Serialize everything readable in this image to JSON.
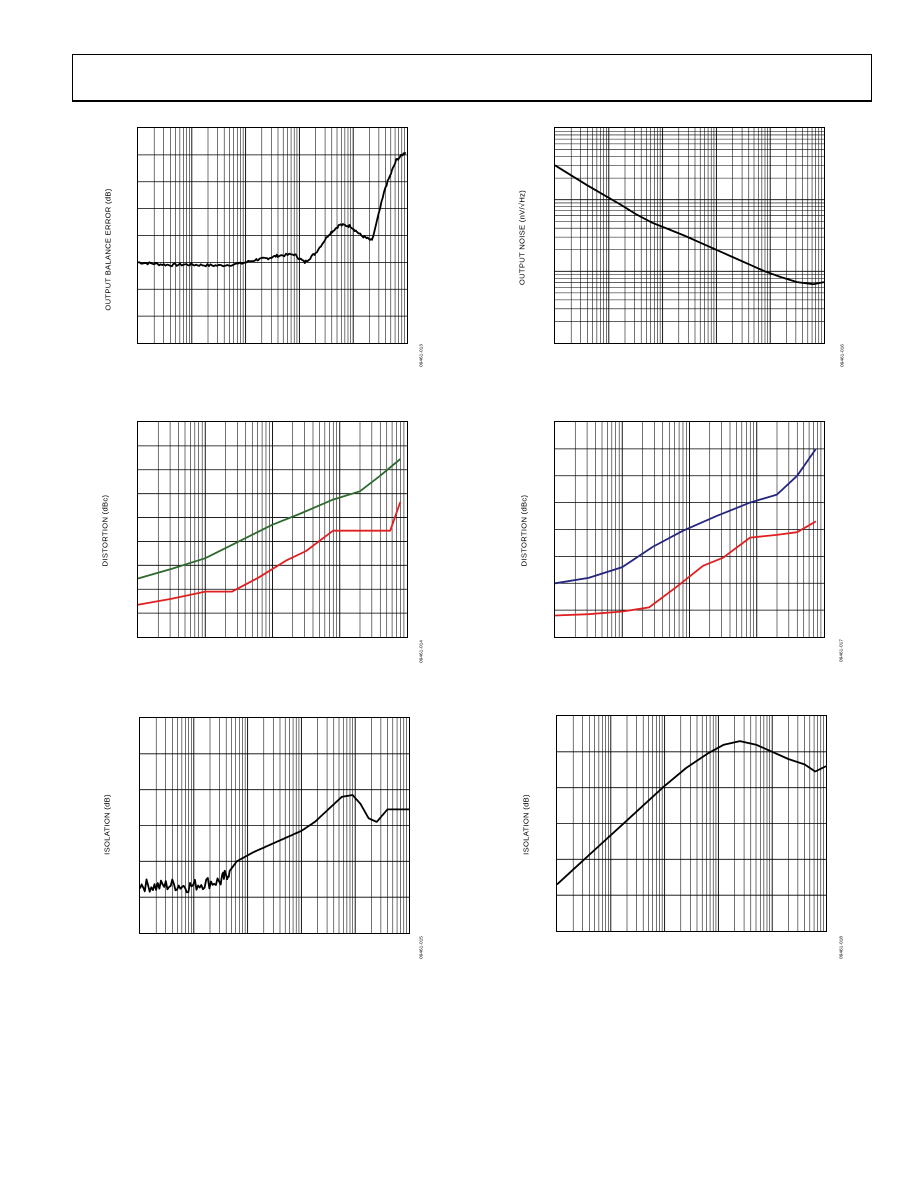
{
  "page": {
    "header_text": ""
  },
  "chart_data": [
    {
      "id": "c1",
      "type": "line",
      "ylabel": "OUTPUT BALANCE ERROR (dB)",
      "figure_id": "09461-013",
      "x_decades": 5,
      "y_divisions": 8,
      "hgrid_minor": 1,
      "ylim": [
        0,
        8
      ],
      "xlog": true,
      "xlim": [
        0,
        5
      ],
      "series": [
        {
          "color": "#000000",
          "jitter": 0.05,
          "x": [
            0,
            0.3,
            0.6,
            0.9,
            1.2,
            1.5,
            1.9,
            2.2,
            2.4,
            2.6,
            2.9,
            3.1,
            3.3,
            3.55,
            3.75,
            3.95,
            4.15,
            4.35,
            4.6,
            4.8,
            4.97
          ],
          "y": [
            3.0,
            2.95,
            2.9,
            2.92,
            2.9,
            2.88,
            2.95,
            3.1,
            3.15,
            3.25,
            3.3,
            3.0,
            3.35,
            4.05,
            4.4,
            4.35,
            4.0,
            3.8,
            5.8,
            6.8,
            7.1
          ]
        }
      ]
    },
    {
      "id": "c2",
      "type": "line",
      "ylabel": "OUTPUT NOISE (nV/√Hz)",
      "figure_id": "09461-016",
      "x_decades": 5,
      "y_decades": 3,
      "ylim": [
        0,
        3
      ],
      "ylog": true,
      "xlog": true,
      "xlim": [
        0,
        5
      ],
      "series": [
        {
          "color": "#000000",
          "jitter": 0.0,
          "x": [
            0,
            0.3,
            0.6,
            0.9,
            1.2,
            1.5,
            1.8,
            2.1,
            2.4,
            2.7,
            3.0,
            3.3,
            3.6,
            3.9,
            4.2,
            4.5,
            4.8,
            5.0
          ],
          "y": [
            2.48,
            2.34,
            2.2,
            2.07,
            1.94,
            1.8,
            1.68,
            1.59,
            1.5,
            1.4,
            1.3,
            1.2,
            1.1,
            1.0,
            0.92,
            0.85,
            0.82,
            0.85
          ]
        }
      ]
    },
    {
      "id": "c3",
      "type": "line",
      "ylabel": "DISTORTION (dBc)",
      "figure_id": "09461-014",
      "x_decades": 4,
      "y_divisions": 9,
      "hgrid_minor": 1,
      "ylim": [
        0,
        9
      ],
      "xlog": true,
      "xlim": [
        0,
        4
      ],
      "series": [
        {
          "color": "#2e6a2e",
          "jitter": 0,
          "x": [
            0,
            0.5,
            1.0,
            1.5,
            2.0,
            2.4,
            2.9,
            3.3,
            3.6,
            3.9
          ],
          "y": [
            2.45,
            2.85,
            3.3,
            4.0,
            4.7,
            5.15,
            5.75,
            6.1,
            6.75,
            7.45
          ]
        },
        {
          "color": "#e02020",
          "jitter": 0,
          "x": [
            0,
            0.5,
            1.0,
            1.4,
            1.8,
            2.2,
            2.5,
            2.9,
            3.3,
            3.5,
            3.75,
            3.9
          ],
          "y": [
            1.35,
            1.6,
            1.9,
            1.9,
            2.5,
            3.2,
            3.6,
            4.45,
            4.45,
            4.45,
            4.45,
            5.65
          ]
        }
      ]
    },
    {
      "id": "c4",
      "type": "line",
      "ylabel": "DISTORTION (dBc)",
      "figure_id": "09461-017",
      "x_decades": 4,
      "y_divisions": 8,
      "hgrid_minor": 1,
      "ylim": [
        0,
        8
      ],
      "xlog": true,
      "xlim": [
        0,
        4
      ],
      "series": [
        {
          "color": "#262680",
          "jitter": 0,
          "x": [
            0,
            0.5,
            1.0,
            1.45,
            1.9,
            2.4,
            2.9,
            3.3,
            3.6,
            3.88
          ],
          "y": [
            2.0,
            2.2,
            2.6,
            3.35,
            3.95,
            4.5,
            5.0,
            5.3,
            6.0,
            7.0
          ]
        },
        {
          "color": "#e02020",
          "jitter": 0,
          "x": [
            0,
            0.5,
            1.0,
            1.4,
            1.8,
            2.2,
            2.5,
            2.9,
            3.3,
            3.6,
            3.88
          ],
          "y": [
            0.8,
            0.85,
            0.95,
            1.1,
            1.85,
            2.65,
            2.95,
            3.7,
            3.8,
            3.9,
            4.3
          ]
        }
      ]
    },
    {
      "id": "c5",
      "type": "line",
      "ylabel": "ISOLATION (dB)",
      "figure_id": "09461-015",
      "x_decades": 5,
      "y_divisions": 6,
      "hgrid_minor": 0,
      "ylim": [
        0,
        6
      ],
      "xlog": true,
      "xlim": [
        0,
        5
      ],
      "series": [
        {
          "color": "#000000",
          "jitter": 0.18,
          "jitter_until": 1.65,
          "x": [
            0,
            0.3,
            0.6,
            0.9,
            1.2,
            1.5,
            1.65,
            1.8,
            2.1,
            2.4,
            2.7,
            3.0,
            3.25,
            3.5,
            3.75,
            3.95,
            4.1,
            4.25,
            4.4,
            4.6,
            4.8,
            5.0
          ],
          "y": [
            1.35,
            1.3,
            1.35,
            1.3,
            1.4,
            1.45,
            1.7,
            2.0,
            2.25,
            2.45,
            2.65,
            2.85,
            3.1,
            3.45,
            3.8,
            3.85,
            3.6,
            3.2,
            3.1,
            3.45,
            3.45,
            3.45
          ]
        }
      ]
    },
    {
      "id": "c6",
      "type": "line",
      "ylabel": "ISOLATION (dB)",
      "figure_id": "09461-018",
      "x_decades": 5,
      "y_divisions": 6,
      "hgrid_minor": 0,
      "ylim": [
        0,
        6
      ],
      "xlog": true,
      "xlim": [
        0,
        5
      ],
      "series": [
        {
          "color": "#000000",
          "jitter": 0,
          "x": [
            0,
            0.4,
            0.8,
            1.2,
            1.6,
            2.0,
            2.4,
            2.8,
            3.1,
            3.4,
            3.7,
            4.0,
            4.3,
            4.6,
            4.8,
            5.0
          ],
          "y": [
            1.3,
            1.85,
            2.4,
            2.95,
            3.5,
            4.05,
            4.55,
            4.95,
            5.2,
            5.3,
            5.2,
            5.0,
            4.8,
            4.65,
            4.45,
            4.6
          ]
        }
      ]
    }
  ]
}
